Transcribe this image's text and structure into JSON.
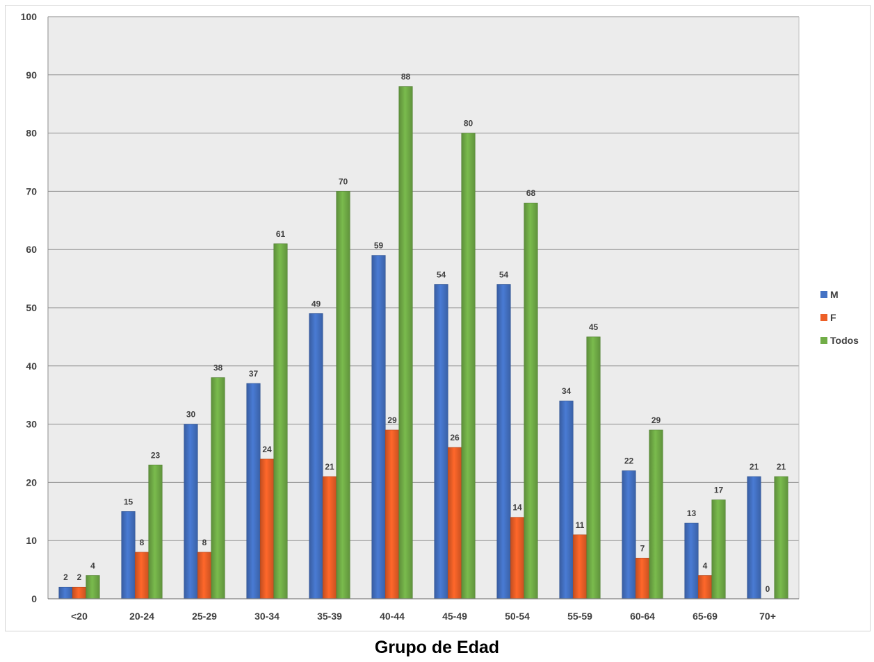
{
  "chart_data": {
    "type": "bar",
    "xlabel": "Grupo de Edad",
    "ylabel": "",
    "ylim": [
      0,
      100
    ],
    "yticks": [
      0,
      10,
      20,
      30,
      40,
      50,
      60,
      70,
      80,
      90,
      100
    ],
    "grid": true,
    "legend_position": "right",
    "categories": [
      "<20",
      "20-24",
      "25-29",
      "30-34",
      "35-39",
      "40-44",
      "45-49",
      "50-54",
      "55-59",
      "60-64",
      "65-69",
      "70+"
    ],
    "series": [
      {
        "name": "M",
        "color": "#4472c4",
        "values": [
          2,
          15,
          30,
          37,
          49,
          59,
          54,
          54,
          34,
          22,
          13,
          21
        ]
      },
      {
        "name": "F",
        "color": "#ed5f27",
        "values": [
          2,
          8,
          8,
          24,
          21,
          29,
          26,
          14,
          11,
          7,
          4,
          0
        ]
      },
      {
        "name": "Todos",
        "color": "#71ad47",
        "values": [
          4,
          23,
          38,
          61,
          70,
          88,
          80,
          68,
          45,
          29,
          17,
          21
        ]
      }
    ],
    "plot_background": "#ececec",
    "gridline_color": "#8c8c8c"
  }
}
